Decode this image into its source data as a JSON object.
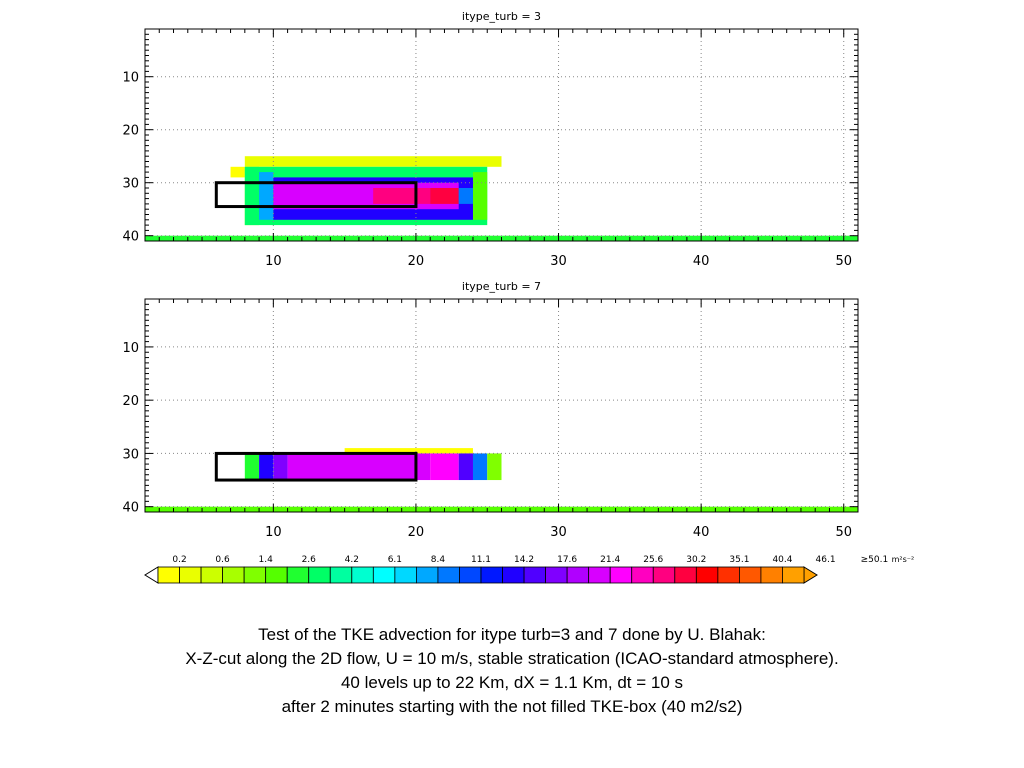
{
  "chart_data": [
    {
      "type": "heatmap",
      "title": "itype_turb = 3",
      "xlim": [
        1,
        51
      ],
      "ylim": [
        41,
        1
      ],
      "x_ticks": [
        10,
        20,
        30,
        40,
        50
      ],
      "y_ticks": [
        10,
        20,
        30,
        40
      ],
      "grid": true,
      "box": {
        "x0": 6,
        "x1": 20,
        "y0": 30,
        "y1": 34.5
      },
      "cells": [
        {
          "x0": 7,
          "x1": 8,
          "y0": 27,
          "y1": 29,
          "level": 0
        },
        {
          "x0": 8,
          "x1": 26,
          "y0": 25,
          "y1": 27,
          "level": 1
        },
        {
          "x0": 8,
          "x1": 9,
          "y0": 27,
          "y1": 38,
          "level": 3
        },
        {
          "x0": 8,
          "x1": 25,
          "y0": 27,
          "y1": 38,
          "level": 7
        },
        {
          "x0": 9,
          "x1": 10,
          "y0": 28,
          "y1": 37,
          "level": 12
        },
        {
          "x0": 10,
          "x1": 24,
          "y0": 29,
          "y1": 37,
          "level": 16
        },
        {
          "x0": 10,
          "x1": 23,
          "y0": 30,
          "y1": 35,
          "level": 20
        },
        {
          "x0": 17,
          "x1": 21,
          "y0": 31,
          "y1": 34,
          "level": 23
        },
        {
          "x0": 21,
          "x1": 23,
          "y0": 31,
          "y1": 34,
          "level": 24
        },
        {
          "x0": 23,
          "x1": 24,
          "y0": 31,
          "y1": 34,
          "level": 13
        },
        {
          "x0": 24,
          "x1": 25,
          "y0": 28,
          "y1": 37,
          "level": 5
        },
        {
          "x0": 1,
          "x1": 51,
          "y0": 40,
          "y1": 41,
          "level": 6
        }
      ]
    },
    {
      "type": "heatmap",
      "title": "itype_turb = 7",
      "xlim": [
        1,
        51
      ],
      "ylim": [
        41,
        1
      ],
      "x_ticks": [
        10,
        20,
        30,
        40,
        50
      ],
      "y_ticks": [
        10,
        20,
        30,
        40
      ],
      "grid": true,
      "box": {
        "x0": 6,
        "x1": 20,
        "y0": 30,
        "y1": 35
      },
      "cells": [
        {
          "x0": 15,
          "x1": 24,
          "y0": 29,
          "y1": 30,
          "level": 0
        },
        {
          "x0": 8,
          "x1": 9,
          "y0": 30,
          "y1": 35,
          "level": 6
        },
        {
          "x0": 9,
          "x1": 10,
          "y0": 30,
          "y1": 35,
          "level": 16
        },
        {
          "x0": 10,
          "x1": 11,
          "y0": 30,
          "y1": 35,
          "level": 18
        },
        {
          "x0": 11,
          "x1": 21,
          "y0": 30,
          "y1": 35,
          "level": 20
        },
        {
          "x0": 21,
          "x1": 23,
          "y0": 30,
          "y1": 35,
          "level": 21
        },
        {
          "x0": 23,
          "x1": 24,
          "y0": 30,
          "y1": 35,
          "level": 17
        },
        {
          "x0": 24,
          "x1": 25,
          "y0": 30,
          "y1": 35,
          "level": 13
        },
        {
          "x0": 25,
          "x1": 26,
          "y0": 30,
          "y1": 35,
          "level": 4
        },
        {
          "x0": 1,
          "x1": 51,
          "y0": 40,
          "y1": 41,
          "level": 5
        }
      ]
    }
  ],
  "colorbar": {
    "labels": [
      "0.2",
      "0.6",
      "1.4",
      "2.6",
      "4.2",
      "6.1",
      "8.4",
      "11.1",
      "14.2",
      "17.6",
      "21.4",
      "25.6",
      "30.2",
      "35.1",
      "40.4",
      "46.1",
      "≥50.1"
    ],
    "units": "m²s⁻²",
    "colors": [
      "#ffff00",
      "#eaff00",
      "#ccff00",
      "#a8ff00",
      "#80ff00",
      "#55ff00",
      "#20ff30",
      "#00ff66",
      "#00ffa0",
      "#00ffd0",
      "#00ffff",
      "#00d8ff",
      "#00a8ff",
      "#0078ff",
      "#0048ff",
      "#0018ff",
      "#2000ff",
      "#5000ff",
      "#8000ff",
      "#b000ff",
      "#d800ff",
      "#ff00ff",
      "#ff00c0",
      "#ff0080",
      "#ff0040",
      "#ff0000",
      "#ff3000",
      "#ff5800",
      "#ff8000",
      "#ffa000"
    ]
  },
  "caption": [
    "Test of the TKE advection for itype turb=3 and 7 done by U. Blahak:",
    "X-Z-cut along the 2D flow, U = 10 m/s, stable stratication (ICAO-standard atmosphere).",
    "40 levels up to 22 Km, dX = 1.1 Km, dt = 10 s",
    "after 2 minutes starting with the not filled TKE-box (40 m2/s2)"
  ]
}
